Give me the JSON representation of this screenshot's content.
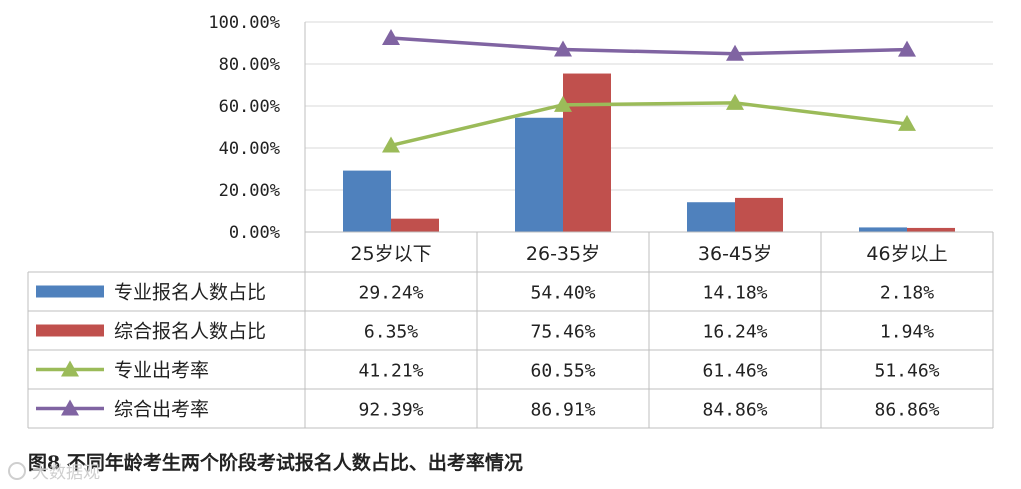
{
  "chart_data": {
    "type": "bar+line",
    "categories": [
      "25岁以下",
      "26-35岁",
      "36-45岁",
      "46岁以上"
    ],
    "y_tick_labels": [
      "0.00%",
      "20.00%",
      "40.00%",
      "60.00%",
      "80.00%",
      "100.00%"
    ],
    "ylim": [
      0,
      100
    ],
    "grid": true,
    "legend_placement": "data-table",
    "series": [
      {
        "name": "专业报名人数占比",
        "kind": "bar",
        "color": "#4f81bd",
        "values": [
          29.24,
          54.4,
          14.18,
          2.18
        ],
        "labels": [
          "29.24%",
          "54.40%",
          "14.18%",
          "2.18%"
        ]
      },
      {
        "name": "综合报名人数占比",
        "kind": "bar",
        "color": "#c0504d",
        "values": [
          6.35,
          75.46,
          16.24,
          1.94
        ],
        "labels": [
          "6.35%",
          "75.46%",
          "16.24%",
          "1.94%"
        ]
      },
      {
        "name": "专业出考率",
        "kind": "line",
        "marker": "triangle",
        "color": "#9bbb59",
        "values": [
          41.21,
          60.55,
          61.46,
          51.46
        ],
        "labels": [
          "41.21%",
          "60.55%",
          "61.46%",
          "51.46%"
        ]
      },
      {
        "name": "综合出考率",
        "kind": "line",
        "marker": "triangle",
        "color": "#8064a2",
        "values": [
          92.39,
          86.91,
          84.86,
          86.86
        ],
        "labels": [
          "92.39%",
          "86.91%",
          "84.86%",
          "86.86%"
        ]
      }
    ]
  },
  "caption": "图8 不同年龄考生两个阶段考试报名人数占比、出考率情况",
  "watermark": "大数据观"
}
